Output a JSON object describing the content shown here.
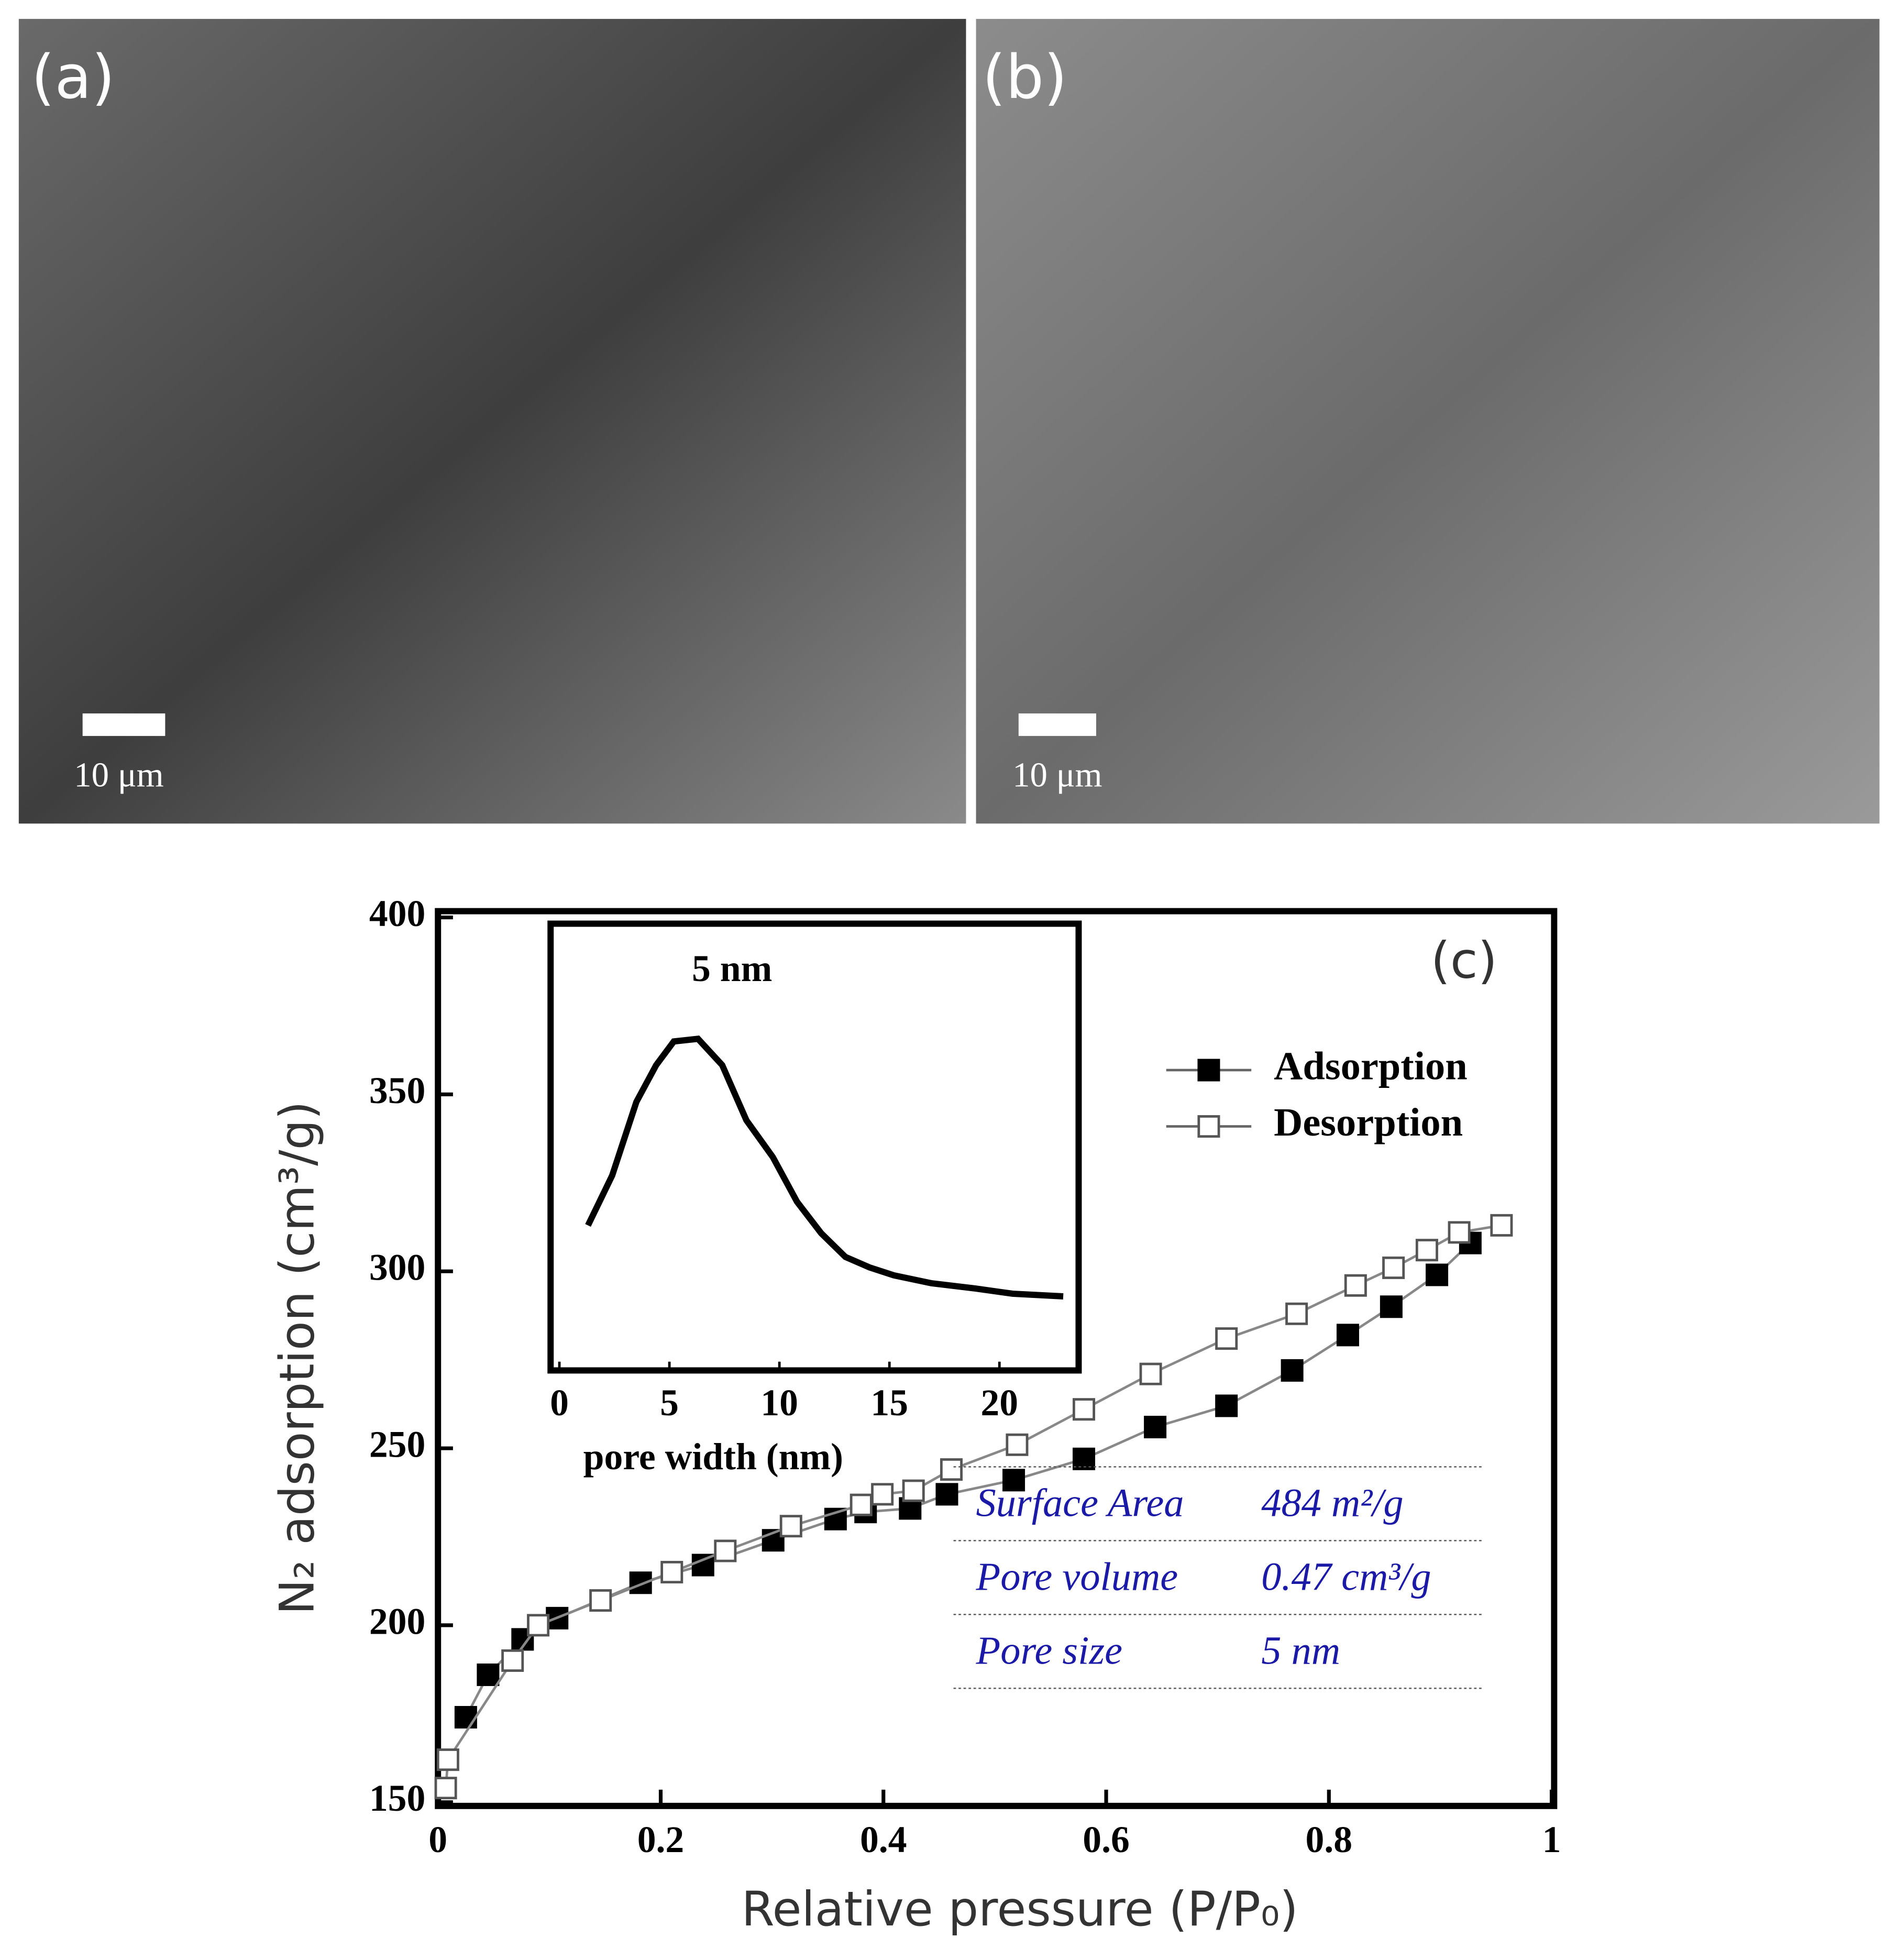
{
  "panels": [
    {
      "label": "(a)",
      "scale_bar": "10 μm"
    },
    {
      "label": "(b)",
      "scale_bar": "10 μm"
    }
  ],
  "table": {
    "rows": [
      [
        "Surface Area",
        "484 m²/g"
      ],
      [
        "Pore volume",
        "0.47 cm³/g"
      ],
      [
        "Pore size",
        "5 nm"
      ]
    ],
    "color": "#1a1aa6"
  },
  "chart_data": [
    {
      "type": "scatter-line",
      "panel_label": "(c)",
      "xlabel": "Relative pressure (P/P₀)",
      "ylabel": "N₂ adsorption (cm³/g)",
      "xlim": [
        0,
        1
      ],
      "ylim": [
        150,
        400
      ],
      "xticks": [
        0,
        0.2,
        0.4,
        0.6,
        0.8,
        1
      ],
      "yticks": [
        150,
        200,
        250,
        300,
        350,
        400
      ],
      "legend": "upper right",
      "series": [
        {
          "name": "Adsorption",
          "color": "#000000",
          "marker": "filled-square",
          "x": [
            0.025,
            0.045,
            0.076,
            0.107,
            0.182,
            0.238,
            0.301,
            0.357,
            0.384,
            0.424,
            0.457,
            0.517,
            0.58,
            0.644,
            0.708,
            0.767,
            0.817,
            0.856,
            0.897,
            0.927
          ],
          "values": [
            174,
            186,
            196,
            202,
            212,
            217,
            224,
            230,
            232,
            233,
            237,
            241,
            247,
            256,
            262,
            272,
            282,
            290,
            299,
            308
          ]
        },
        {
          "name": "Desorption",
          "color": "#555555",
          "marker": "open-square",
          "x": [
            0.007,
            0.009,
            0.067,
            0.09,
            0.146,
            0.21,
            0.258,
            0.317,
            0.38,
            0.399,
            0.427,
            0.461,
            0.52,
            0.58,
            0.64,
            0.708,
            0.771,
            0.824,
            0.858,
            0.888,
            0.917,
            0.955
          ],
          "values": [
            154,
            162,
            190,
            200,
            207,
            215,
            221,
            228,
            234,
            237,
            238,
            244,
            251,
            261,
            271,
            281,
            288,
            296,
            301,
            306,
            311,
            313
          ]
        }
      ]
    },
    {
      "type": "line",
      "title": "5 nm",
      "xlabel": "pore width (nm)",
      "xlim": [
        -0.4,
        23.6
      ],
      "xticks": [
        0,
        5,
        10,
        15,
        20
      ],
      "color": "#000000",
      "x": [
        1.3,
        2.4,
        3.5,
        4.4,
        5.2,
        6.3,
        7.4,
        8.5,
        9.7,
        10.8,
        11.9,
        13.0,
        14.1,
        15.2,
        16.9,
        18.9,
        20.6,
        22.9
      ],
      "values": [
        0.29,
        0.48,
        0.76,
        0.9,
        0.99,
        1.0,
        0.9,
        0.69,
        0.55,
        0.38,
        0.26,
        0.17,
        0.13,
        0.1,
        0.07,
        0.05,
        0.03,
        0.02
      ]
    }
  ]
}
